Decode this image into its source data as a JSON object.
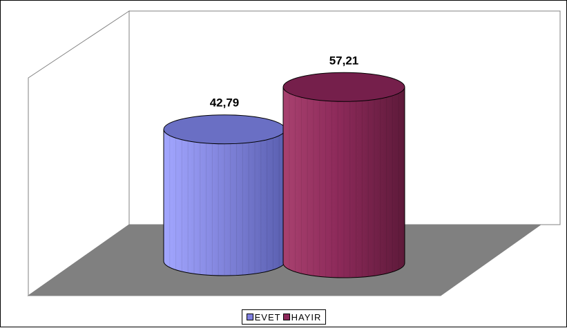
{
  "chart_data": {
    "type": "bar",
    "style": "3d-cylinder",
    "categories": [
      "EVET",
      "HAYIR"
    ],
    "values": [
      42.79,
      57.21
    ],
    "value_labels": [
      "42,79",
      "57,21"
    ],
    "series": [
      {
        "name": "EVET",
        "value": 42.79,
        "label": "42,79",
        "color": "#8080e0"
      },
      {
        "name": "HAYIR",
        "value": 57.21,
        "label": "57,21",
        "color": "#8f2a5c"
      }
    ],
    "title": "",
    "xlabel": "",
    "ylabel": "",
    "ylim": [
      0,
      70
    ],
    "grid": false,
    "legend": "bottom-center",
    "floor_color": "#808080"
  }
}
